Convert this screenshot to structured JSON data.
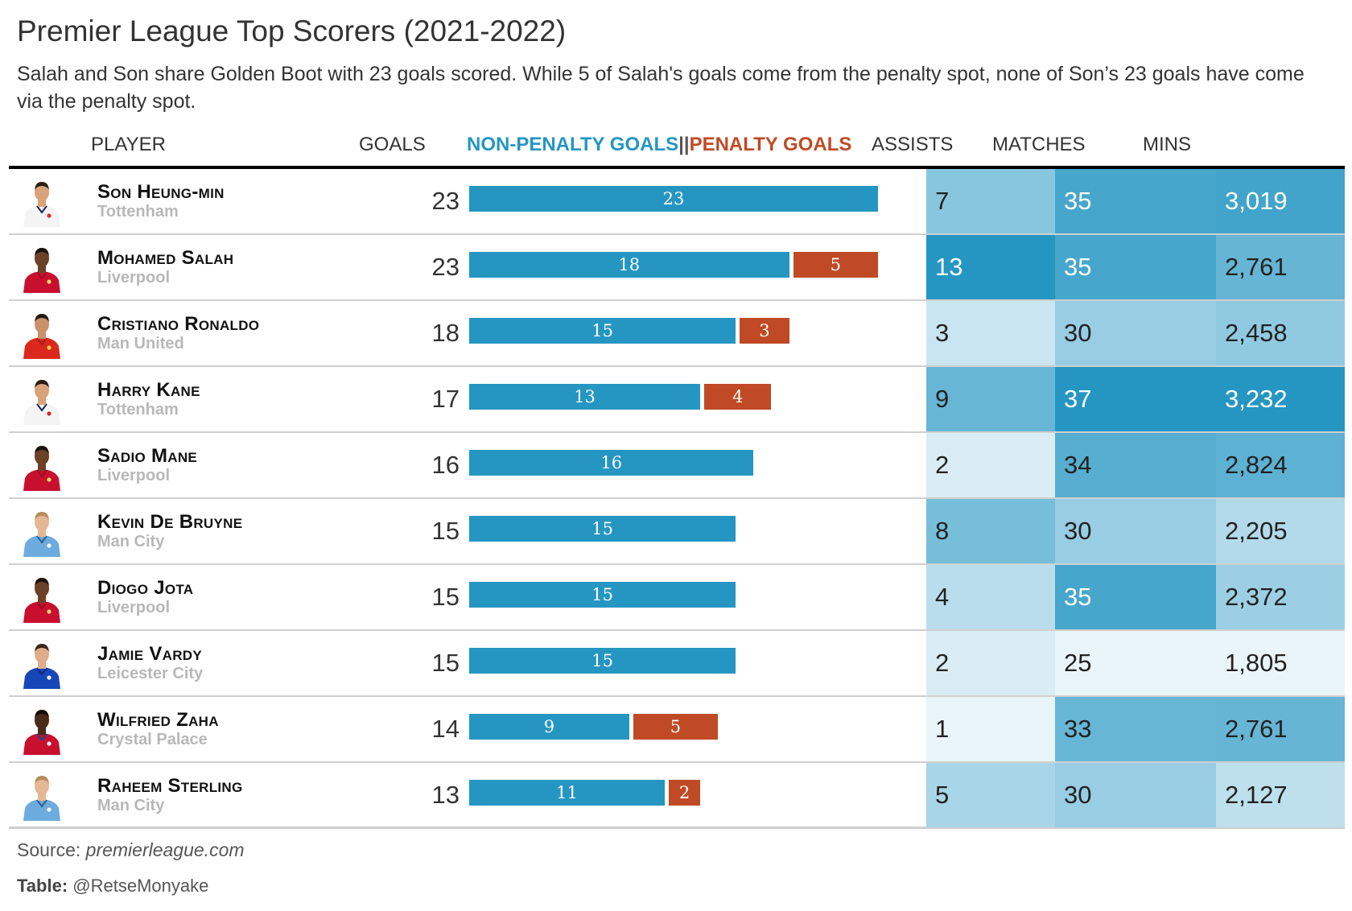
{
  "title": "Premier League Top Scorers (2021-2022)",
  "subtitle": "Salah and Son share Golden Boot with 23 goals scored. While 5 of Salah's goals come from the penalty spot, none of Son’s 23 goals have come via the penalty spot.",
  "headers": {
    "player": "PLAYER",
    "goals": "GOALS",
    "non_penalty": "NON-PENALTY GOALS",
    "separator": "||",
    "penalty": "PENALTY GOALS",
    "assists": "ASSISTS",
    "matches": "MATCHES",
    "mins": "MINS"
  },
  "colors": {
    "non_penalty": "#2596c2",
    "penalty": "#c04a25",
    "heat_low": "#eaf5fa",
    "heat_high": "#2596c2"
  },
  "source_label": "Source: ",
  "source_value": "premierleague.com",
  "credit_label": "Table:",
  "credit_value": " @RetseMonyake",
  "chart_data": {
    "type": "table",
    "columns": [
      "PLAYER",
      "GOALS",
      "NON-PENALTY GOALS",
      "PENALTY GOALS",
      "ASSISTS",
      "MATCHES",
      "MINS"
    ],
    "bar_max": 23,
    "rows": [
      {
        "player": "Son Heung-min",
        "team": "Tottenham",
        "kit": "tottenham",
        "goals": 23,
        "non_penalty": 23,
        "penalty": 0,
        "assists": 7,
        "matches": 35,
        "mins": "3,019"
      },
      {
        "player": "Mohamed Salah",
        "team": "Liverpool",
        "kit": "liverpool",
        "goals": 23,
        "non_penalty": 18,
        "penalty": 5,
        "assists": 13,
        "matches": 35,
        "mins": "2,761"
      },
      {
        "player": "Cristiano Ronaldo",
        "team": "Man United",
        "kit": "manutd",
        "goals": 18,
        "non_penalty": 15,
        "penalty": 3,
        "assists": 3,
        "matches": 30,
        "mins": "2,458"
      },
      {
        "player": "Harry Kane",
        "team": "Tottenham",
        "kit": "tottenham",
        "goals": 17,
        "non_penalty": 13,
        "penalty": 4,
        "assists": 9,
        "matches": 37,
        "mins": "3,232"
      },
      {
        "player": "Sadio Mane",
        "team": "Liverpool",
        "kit": "liverpool",
        "goals": 16,
        "non_penalty": 16,
        "penalty": 0,
        "assists": 2,
        "matches": 34,
        "mins": "2,824"
      },
      {
        "player": "Kevin De Bruyne",
        "team": "Man City",
        "kit": "mancity",
        "goals": 15,
        "non_penalty": 15,
        "penalty": 0,
        "assists": 8,
        "matches": 30,
        "mins": "2,205"
      },
      {
        "player": "Diogo Jota",
        "team": "Liverpool",
        "kit": "liverpool",
        "goals": 15,
        "non_penalty": 15,
        "penalty": 0,
        "assists": 4,
        "matches": 35,
        "mins": "2,372"
      },
      {
        "player": "Jamie Vardy",
        "team": "Leicester City",
        "kit": "leicester",
        "goals": 15,
        "non_penalty": 15,
        "penalty": 0,
        "assists": 2,
        "matches": 25,
        "mins": "1,805"
      },
      {
        "player": "Wilfried Zaha",
        "team": "Crystal Palace",
        "kit": "palace",
        "goals": 14,
        "non_penalty": 9,
        "penalty": 5,
        "assists": 1,
        "matches": 33,
        "mins": "2,761"
      },
      {
        "player": "Raheem Sterling",
        "team": "Man City",
        "kit": "mancity",
        "goals": 13,
        "non_penalty": 11,
        "penalty": 2,
        "assists": 5,
        "matches": 30,
        "mins": "2,127"
      }
    ]
  }
}
